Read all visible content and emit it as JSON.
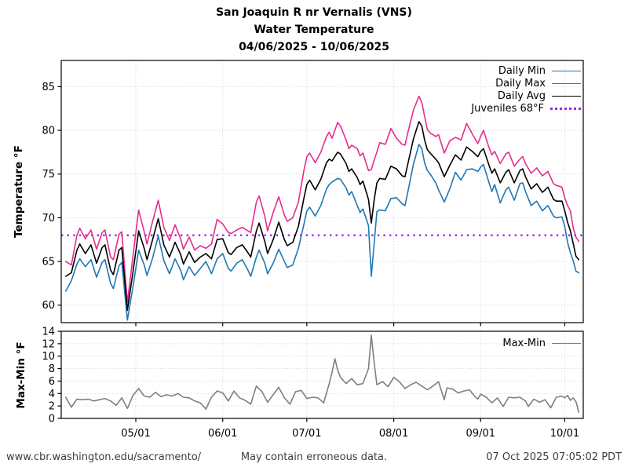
{
  "colors": {
    "daily_min": "#1f77b4",
    "daily_max": "#e52d8c",
    "daily_avg": "#000000",
    "juveniles": "#a020f0",
    "max_min": "#7f7f7f",
    "grid": "#c9c9c9",
    "axis": "#000000",
    "footer_text": "#3d3d3d"
  },
  "footer": {
    "left": "www.cbr.washington.edu/sacramento/",
    "center": "May contain erroneous data.",
    "right": "07 Oct 2025 07:05:02 PDT"
  },
  "chart_data": [
    {
      "type": "line",
      "panel": "temperature",
      "title": "San Joaquin R nr Vernalis (VNS)",
      "subtitle": "Water Temperature",
      "date_range": "04/06/2025 - 10/06/2025",
      "xlabel": "",
      "ylabel": "Temperature °F",
      "ylim": [
        58,
        88
      ],
      "yticks": [
        60,
        65,
        70,
        75,
        80,
        85
      ],
      "xlim_days": [
        -1.6,
        184.6
      ],
      "xticks": [
        "05/01",
        "06/01",
        "07/01",
        "08/01",
        "09/01",
        "10/01"
      ],
      "grid": true,
      "legend_position": "upper right",
      "reference_line": {
        "name": "Juveniles 68°F",
        "value": 68,
        "style": "dotted",
        "color_key": "juveniles"
      },
      "dates": [
        "04/06",
        "04/08",
        "04/10",
        "04/11",
        "04/13",
        "04/15",
        "04/17",
        "04/19",
        "04/20",
        "04/22",
        "04/23",
        "04/25",
        "04/26",
        "04/28",
        "04/30",
        "05/02",
        "05/04",
        "05/05",
        "05/07",
        "05/09",
        "05/11",
        "05/13",
        "05/15",
        "05/17",
        "05/18",
        "05/20",
        "05/22",
        "05/24",
        "05/26",
        "05/28",
        "05/30",
        "06/01",
        "06/03",
        "06/04",
        "06/06",
        "06/08",
        "06/10",
        "06/11",
        "06/13",
        "06/14",
        "06/16",
        "06/17",
        "06/19",
        "06/21",
        "06/23",
        "06/24",
        "06/26",
        "06/28",
        "06/30",
        "07/01",
        "07/02",
        "07/04",
        "07/06",
        "07/08",
        "07/09",
        "07/10",
        "07/12",
        "07/13",
        "07/15",
        "07/16",
        "07/17",
        "07/19",
        "07/20",
        "07/21",
        "07/23",
        "07/24",
        "07/25",
        "07/26",
        "07/27",
        "07/29",
        "07/31",
        "08/02",
        "08/04",
        "08/05",
        "08/06",
        "08/08",
        "08/10",
        "08/11",
        "08/12",
        "08/13",
        "08/14",
        "08/16",
        "08/17",
        "08/19",
        "08/21",
        "08/23",
        "08/25",
        "08/27",
        "08/29",
        "08/31",
        "09/01",
        "09/02",
        "09/04",
        "09/05",
        "09/06",
        "09/08",
        "09/10",
        "09/11",
        "09/13",
        "09/15",
        "09/16",
        "09/17",
        "09/19",
        "09/21",
        "09/23",
        "09/25",
        "09/27",
        "09/28",
        "09/30",
        "10/01",
        "10/02",
        "10/03",
        "10/04",
        "10/05",
        "10/06"
      ],
      "series": [
        {
          "name": "Daily Min",
          "color_key": "daily_min",
          "values": [
            61.6,
            62.8,
            64.7,
            65.3,
            64.4,
            65.2,
            63.2,
            64.9,
            65.2,
            62.5,
            61.9,
            64.5,
            64.9,
            58.3,
            62.1,
            66.3,
            64.6,
            63.4,
            65.4,
            67.9,
            65.1,
            63.6,
            65.3,
            64.0,
            62.9,
            64.4,
            63.4,
            64.2,
            65.0,
            63.6,
            65.3,
            65.9,
            64.2,
            63.9,
            64.8,
            65.2,
            64.0,
            63.3,
            65.5,
            66.3,
            64.8,
            63.6,
            64.8,
            66.4,
            65.0,
            64.3,
            64.6,
            66.5,
            69.3,
            70.8,
            71.2,
            70.2,
            71.4,
            73.3,
            73.8,
            74.1,
            74.5,
            74.4,
            73.4,
            72.6,
            73.0,
            71.4,
            70.6,
            71.0,
            69.1,
            63.3,
            67.0,
            70.7,
            70.9,
            70.8,
            72.2,
            72.3,
            71.6,
            71.4,
            72.9,
            76.1,
            78.4,
            77.9,
            76.3,
            75.4,
            75.0,
            74.0,
            73.2,
            71.8,
            73.3,
            75.2,
            74.3,
            75.5,
            75.6,
            75.3,
            75.8,
            76.1,
            74.0,
            73.0,
            73.8,
            71.7,
            73.2,
            73.5,
            72.0,
            73.9,
            74.0,
            73.0,
            71.4,
            71.9,
            70.8,
            71.4,
            70.2,
            70.0,
            70.1,
            69.0,
            67.2,
            66.0,
            65.1,
            63.9,
            63.7
          ]
        },
        {
          "name": "Daily Max",
          "color_key": "daily_max",
          "values": [
            65.0,
            64.6,
            68.0,
            68.8,
            67.6,
            68.6,
            66.4,
            68.3,
            68.6,
            65.5,
            65.2,
            68.1,
            68.4,
            60.3,
            65.6,
            70.9,
            68.4,
            67.0,
            69.6,
            72.0,
            68.9,
            67.4,
            69.2,
            67.6,
            66.4,
            67.8,
            66.3,
            66.8,
            66.5,
            67.0,
            69.8,
            69.3,
            68.3,
            68.2,
            68.6,
            68.9,
            68.5,
            68.3,
            71.8,
            72.5,
            70.2,
            68.5,
            70.6,
            72.4,
            70.3,
            69.6,
            70.0,
            71.8,
            75.5,
            77.0,
            77.4,
            76.3,
            77.5,
            79.3,
            79.8,
            79.1,
            80.9,
            80.5,
            78.9,
            77.9,
            78.3,
            77.9,
            77.1,
            77.4,
            75.4,
            75.5,
            76.6,
            77.5,
            78.6,
            78.4,
            80.2,
            79.1,
            78.4,
            78.3,
            79.7,
            82.3,
            83.9,
            83.2,
            81.6,
            80.1,
            79.7,
            79.3,
            79.5,
            77.4,
            78.8,
            79.2,
            78.9,
            80.8,
            79.6,
            78.5,
            79.3,
            80.0,
            78.0,
            77.2,
            77.6,
            76.2,
            77.3,
            77.5,
            75.9,
            76.7,
            77.0,
            76.2,
            75.1,
            75.7,
            74.8,
            75.3,
            73.9,
            73.7,
            73.5,
            72.3,
            71.4,
            70.8,
            68.9,
            67.8,
            67.3
          ]
        },
        {
          "name": "Daily Avg",
          "color_key": "daily_avg",
          "values": [
            63.3,
            63.7,
            66.3,
            67.0,
            65.9,
            66.9,
            64.8,
            66.6,
            66.9,
            64.0,
            63.5,
            66.3,
            66.6,
            59.4,
            63.8,
            68.5,
            66.5,
            65.2,
            67.5,
            69.9,
            66.9,
            65.5,
            67.2,
            65.8,
            64.7,
            66.1,
            64.9,
            65.5,
            65.9,
            65.3,
            67.5,
            67.6,
            66.0,
            65.8,
            66.6,
            66.9,
            66.0,
            65.5,
            68.5,
            69.4,
            67.3,
            65.9,
            67.5,
            69.5,
            67.5,
            66.8,
            67.2,
            69.0,
            72.3,
            73.8,
            74.3,
            73.2,
            74.4,
            76.3,
            76.7,
            76.5,
            77.5,
            77.3,
            76.2,
            75.3,
            75.6,
            74.6,
            73.8,
            74.2,
            72.1,
            69.4,
            72.0,
            74.0,
            74.5,
            74.4,
            75.9,
            75.6,
            74.8,
            74.7,
            76.1,
            79.0,
            81.0,
            80.5,
            78.9,
            77.8,
            77.4,
            76.7,
            76.3,
            74.7,
            76.0,
            77.2,
            76.6,
            78.1,
            77.6,
            77.0,
            77.6,
            77.9,
            76.0,
            75.1,
            75.6,
            74.0,
            75.2,
            75.5,
            74.0,
            75.4,
            75.6,
            74.7,
            73.3,
            73.9,
            72.9,
            73.5,
            72.1,
            71.9,
            71.9,
            70.8,
            69.5,
            68.5,
            67.1,
            65.6,
            65.2
          ]
        }
      ]
    },
    {
      "type": "line",
      "panel": "max_min",
      "title": "Max-Min",
      "xlabel": "",
      "ylabel": "Max-Min °F",
      "ylim": [
        0,
        14
      ],
      "yticks": [
        0,
        2,
        4,
        6,
        8,
        10,
        12,
        14
      ],
      "xlim_days": [
        -1.6,
        184.6
      ],
      "xticks": [
        "05/01",
        "06/01",
        "07/01",
        "08/01",
        "09/01",
        "10/01"
      ],
      "grid": true,
      "legend_position": "upper right",
      "dates": [
        "04/06",
        "04/08",
        "04/10",
        "04/12",
        "04/14",
        "04/16",
        "04/18",
        "04/20",
        "04/22",
        "04/24",
        "04/26",
        "04/28",
        "04/30",
        "05/02",
        "05/04",
        "05/06",
        "05/08",
        "05/10",
        "05/12",
        "05/14",
        "05/16",
        "05/18",
        "05/20",
        "05/22",
        "05/24",
        "05/26",
        "05/28",
        "05/30",
        "06/01",
        "06/03",
        "06/05",
        "06/07",
        "06/09",
        "06/11",
        "06/13",
        "06/15",
        "06/17",
        "06/19",
        "06/21",
        "06/23",
        "06/25",
        "06/27",
        "06/29",
        "07/01",
        "07/03",
        "07/05",
        "07/07",
        "07/09",
        "07/10",
        "07/11",
        "07/12",
        "07/13",
        "07/15",
        "07/17",
        "07/19",
        "07/21",
        "07/23",
        "07/24",
        "07/25",
        "07/26",
        "07/28",
        "07/30",
        "08/01",
        "08/03",
        "08/05",
        "08/07",
        "08/09",
        "08/11",
        "08/13",
        "08/15",
        "08/17",
        "08/19",
        "08/20",
        "08/22",
        "08/24",
        "08/26",
        "08/28",
        "08/30",
        "08/31",
        "09/01",
        "09/03",
        "09/05",
        "09/07",
        "09/09",
        "09/11",
        "09/13",
        "09/15",
        "09/17",
        "09/18",
        "09/20",
        "09/22",
        "09/24",
        "09/26",
        "09/28",
        "09/30",
        "10/01",
        "10/02",
        "10/03",
        "10/04",
        "10/05",
        "10/06"
      ],
      "series": [
        {
          "name": "Max-Min",
          "color_key": "max_min",
          "values": [
            3.4,
            1.8,
            3.1,
            3.0,
            3.1,
            2.8,
            3.0,
            3.2,
            2.8,
            2.1,
            3.3,
            1.6,
            3.7,
            4.8,
            3.6,
            3.4,
            4.2,
            3.5,
            3.8,
            3.6,
            4.0,
            3.4,
            3.3,
            2.8,
            2.5,
            1.5,
            3.4,
            4.4,
            4.1,
            2.8,
            4.4,
            3.3,
            2.9,
            2.3,
            5.2,
            4.3,
            2.6,
            3.8,
            5.0,
            3.3,
            2.3,
            4.3,
            4.5,
            3.2,
            3.4,
            3.3,
            2.5,
            5.6,
            7.4,
            9.6,
            7.8,
            6.6,
            5.6,
            6.4,
            5.4,
            5.6,
            8.0,
            13.4,
            9.0,
            5.4,
            5.9,
            5.1,
            6.6,
            5.9,
            4.8,
            5.4,
            5.8,
            5.2,
            4.6,
            5.2,
            5.9,
            3.0,
            4.9,
            4.7,
            4.1,
            4.4,
            4.6,
            3.5,
            3.1,
            3.9,
            3.4,
            2.5,
            3.3,
            1.9,
            3.4,
            3.3,
            3.4,
            2.8,
            1.9,
            3.1,
            2.6,
            3.0,
            1.7,
            3.4,
            3.6,
            3.3,
            3.7,
            2.9,
            3.3,
            2.7,
            1.0
          ]
        }
      ]
    }
  ]
}
